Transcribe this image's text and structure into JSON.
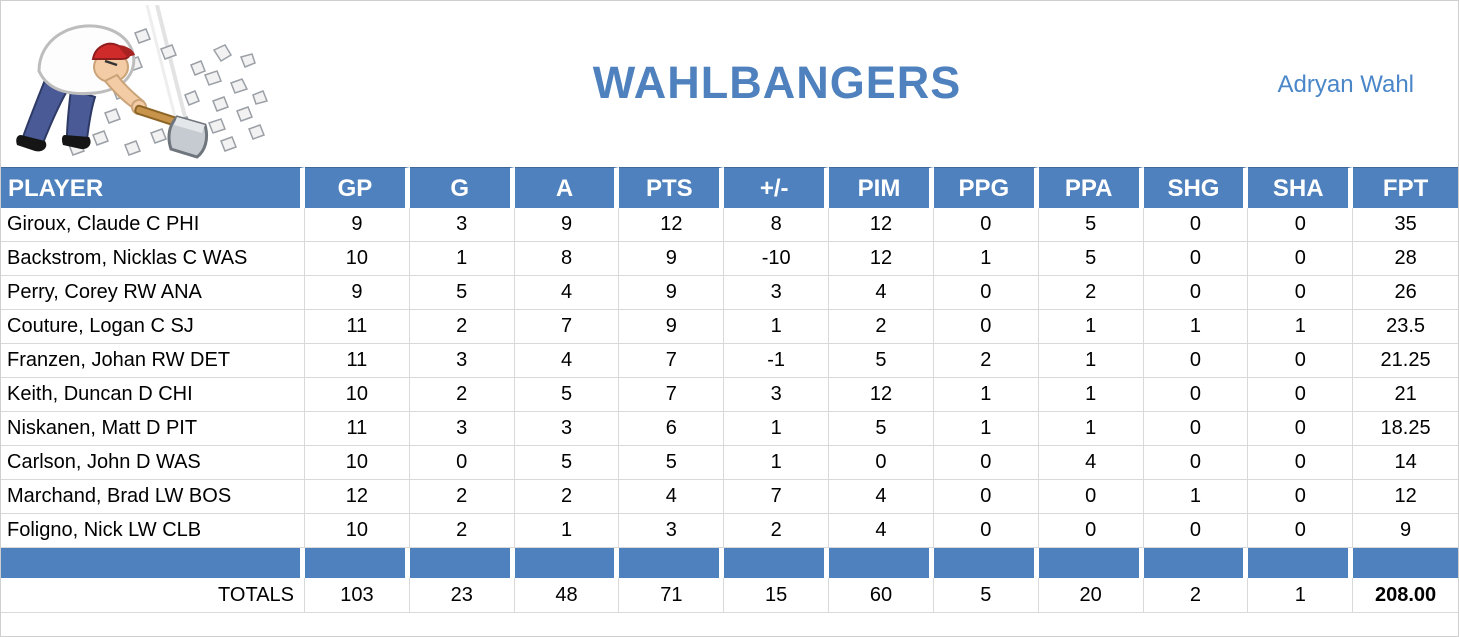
{
  "page": {
    "title": "WAHLBANGERS",
    "owner": "Adryan Wahl"
  },
  "logo": {
    "description": "cartoon man in red cap smashing rocks with sledgehammer"
  },
  "table": {
    "columns": [
      "PLAYER",
      "GP",
      "G",
      "A",
      "PTS",
      "+/-",
      "PIM",
      "PPG",
      "PPA",
      "SHG",
      "SHA",
      "FPT"
    ],
    "rows": [
      {
        "player": "Giroux, Claude C PHI",
        "stats": [
          "9",
          "3",
          "9",
          "12",
          "8",
          "12",
          "0",
          "5",
          "0",
          "0",
          "35"
        ]
      },
      {
        "player": "Backstrom, Nicklas C WAS",
        "stats": [
          "10",
          "1",
          "8",
          "9",
          "-10",
          "12",
          "1",
          "5",
          "0",
          "0",
          "28"
        ]
      },
      {
        "player": "Perry, Corey RW ANA",
        "stats": [
          "9",
          "5",
          "4",
          "9",
          "3",
          "4",
          "0",
          "2",
          "0",
          "0",
          "26"
        ]
      },
      {
        "player": "Couture, Logan C SJ",
        "stats": [
          "11",
          "2",
          "7",
          "9",
          "1",
          "2",
          "0",
          "1",
          "1",
          "1",
          "23.5"
        ]
      },
      {
        "player": "Franzen, Johan RW DET",
        "stats": [
          "11",
          "3",
          "4",
          "7",
          "-1",
          "5",
          "2",
          "1",
          "0",
          "0",
          "21.25"
        ]
      },
      {
        "player": "Keith, Duncan D CHI",
        "stats": [
          "10",
          "2",
          "5",
          "7",
          "3",
          "12",
          "1",
          "1",
          "0",
          "0",
          "21"
        ]
      },
      {
        "player": "Niskanen, Matt D PIT",
        "stats": [
          "11",
          "3",
          "3",
          "6",
          "1",
          "5",
          "1",
          "1",
          "0",
          "0",
          "18.25"
        ]
      },
      {
        "player": "Carlson, John D WAS",
        "stats": [
          "10",
          "0",
          "5",
          "5",
          "1",
          "0",
          "0",
          "4",
          "0",
          "0",
          "14"
        ]
      },
      {
        "player": "Marchand, Brad LW BOS",
        "stats": [
          "12",
          "2",
          "2",
          "4",
          "7",
          "4",
          "0",
          "0",
          "1",
          "0",
          "12"
        ]
      },
      {
        "player": "Foligno, Nick LW CLB",
        "stats": [
          "10",
          "2",
          "1",
          "3",
          "2",
          "4",
          "0",
          "0",
          "0",
          "0",
          "9"
        ]
      }
    ],
    "totals_label": "TOTALS",
    "totals": [
      "103",
      "23",
      "48",
      "71",
      "15",
      "60",
      "5",
      "20",
      "2",
      "1",
      "208.00"
    ]
  },
  "colors": {
    "accent_blue": "#4E81BD",
    "owner_blue": "#4A86C8",
    "gridline": "#D9D9D9"
  }
}
